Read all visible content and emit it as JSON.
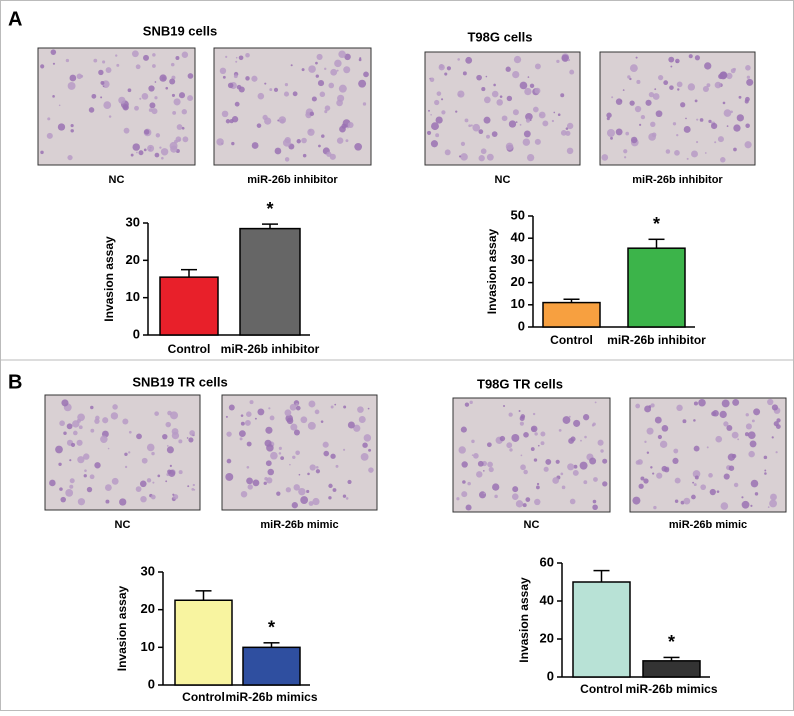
{
  "panels": [
    {
      "label": "A",
      "groups": [
        {
          "title": "SNB19 cells",
          "captions": [
            "NC",
            "miR-26b inhibitor"
          ]
        },
        {
          "title": "T98G cells",
          "captions": [
            "NC",
            "miR-26b inhibitor"
          ]
        }
      ]
    },
    {
      "label": "B",
      "groups": [
        {
          "title": "SNB19 TR cells",
          "captions": [
            "NC",
            "miR-26b mimic"
          ]
        },
        {
          "title": "T98G TR cells",
          "captions": [
            "NC",
            "miR-26b mimic"
          ]
        }
      ]
    }
  ],
  "chart_data": [
    {
      "type": "bar",
      "ylabel": "Invasion  assay",
      "categories": [
        "Control",
        "miR-26b inhibitor"
      ],
      "values": [
        15.5,
        28.5
      ],
      "errors": [
        2,
        1.2
      ],
      "colors": [
        "#e8202a",
        "#666666"
      ],
      "annotations": [
        null,
        "*"
      ],
      "ylim": [
        0,
        30
      ],
      "yticks": [
        0,
        10,
        20,
        30
      ]
    },
    {
      "type": "bar",
      "ylabel": "Invasion  assay",
      "categories": [
        "Control",
        "miR-26b inhibitor"
      ],
      "values": [
        11,
        35.5
      ],
      "errors": [
        1.5,
        4
      ],
      "colors": [
        "#f7a040",
        "#3cb44a"
      ],
      "annotations": [
        null,
        "*"
      ],
      "ylim": [
        0,
        50
      ],
      "yticks": [
        0,
        10,
        20,
        30,
        40,
        50
      ]
    },
    {
      "type": "bar",
      "ylabel": "Invasion  assay",
      "categories": [
        "Control",
        "miR-26b mimics"
      ],
      "values": [
        22.5,
        10
      ],
      "errors": [
        2.5,
        1.2
      ],
      "colors": [
        "#f8f4a0",
        "#2f4fa0"
      ],
      "annotations": [
        null,
        "*"
      ],
      "ylim": [
        0,
        30
      ],
      "yticks": [
        0,
        10,
        20,
        30
      ]
    },
    {
      "type": "bar",
      "ylabel": "Invasion  assay",
      "categories": [
        "Control",
        "miR-26b mimics"
      ],
      "values": [
        50,
        8.5
      ],
      "errors": [
        6,
        1.8
      ],
      "colors": [
        "#b8e2d6",
        "#333333"
      ],
      "annotations": [
        null,
        "*"
      ],
      "ylim": [
        0,
        60
      ],
      "yticks": [
        0,
        20,
        40,
        60
      ]
    }
  ]
}
